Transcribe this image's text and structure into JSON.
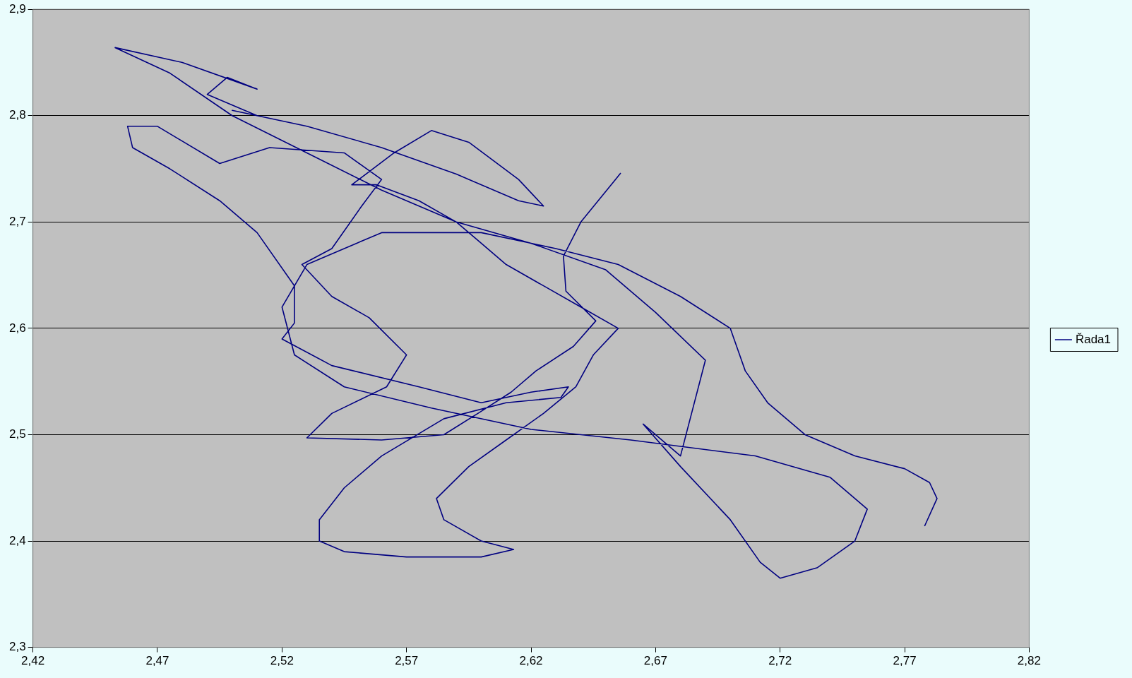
{
  "chart_data": {
    "type": "line",
    "x": [
      2.656,
      2.64,
      2.633,
      2.634,
      2.646,
      2.637,
      2.622,
      2.612,
      2.6,
      2.585,
      2.56,
      2.53,
      2.54,
      2.562,
      2.57,
      2.555,
      2.54,
      2.528,
      2.54,
      2.552,
      2.56,
      2.545,
      2.515,
      2.495,
      2.47,
      2.458,
      2.46,
      2.475,
      2.495,
      2.51,
      2.525,
      2.525,
      2.52,
      2.54,
      2.575,
      2.6,
      2.62,
      2.635,
      2.632,
      2.61,
      2.585,
      2.56,
      2.545,
      2.535,
      2.535,
      2.545,
      2.57,
      2.6,
      2.613,
      2.6,
      2.585,
      2.582,
      2.595,
      2.61,
      2.625,
      2.638,
      2.645,
      2.655,
      2.64,
      2.625,
      2.61,
      2.6,
      2.59,
      2.575,
      2.558,
      2.548,
      2.565,
      2.58,
      2.595,
      2.615,
      2.625,
      2.615,
      2.59,
      2.56,
      2.53,
      2.5,
      2.51,
      2.49,
      2.498,
      2.51,
      2.48,
      2.453,
      2.475,
      2.5,
      2.53,
      2.56,
      2.59,
      2.62,
      2.65,
      2.67,
      2.69,
      2.68,
      2.665,
      2.68,
      2.7,
      2.712,
      2.72,
      2.735,
      2.75,
      2.755,
      2.74,
      2.71,
      2.66,
      2.62,
      2.58,
      2.545,
      2.525,
      2.52,
      2.53,
      2.56,
      2.6,
      2.63,
      2.655,
      2.68,
      2.7,
      2.706,
      2.715,
      2.73,
      2.75,
      2.77,
      2.78,
      2.783,
      2.778
    ],
    "series": [
      {
        "name": "Řada1",
        "color": "#000080",
        "values": [
          2.746,
          2.7,
          2.668,
          2.635,
          2.607,
          2.583,
          2.56,
          2.54,
          2.522,
          2.5,
          2.495,
          2.497,
          2.52,
          2.545,
          2.575,
          2.61,
          2.63,
          2.66,
          2.675,
          2.715,
          2.74,
          2.765,
          2.77,
          2.755,
          2.79,
          2.79,
          2.77,
          2.75,
          2.72,
          2.69,
          2.64,
          2.605,
          2.59,
          2.565,
          2.545,
          2.53,
          2.54,
          2.545,
          2.535,
          2.53,
          2.515,
          2.48,
          2.45,
          2.42,
          2.4,
          2.39,
          2.385,
          2.385,
          2.392,
          2.4,
          2.42,
          2.44,
          2.47,
          2.495,
          2.52,
          2.545,
          2.575,
          2.6,
          2.62,
          2.64,
          2.66,
          2.68,
          2.7,
          2.72,
          2.735,
          2.735,
          2.765,
          2.786,
          2.775,
          2.74,
          2.715,
          2.72,
          2.745,
          2.77,
          2.79,
          2.805,
          2.8,
          2.82,
          2.836,
          2.825,
          2.85,
          2.864,
          2.84,
          2.8,
          2.765,
          2.73,
          2.7,
          2.68,
          2.655,
          2.615,
          2.57,
          2.48,
          2.51,
          2.47,
          2.42,
          2.38,
          2.365,
          2.375,
          2.4,
          2.43,
          2.46,
          2.48,
          2.495,
          2.505,
          2.525,
          2.545,
          2.575,
          2.62,
          2.66,
          2.69,
          2.69,
          2.675,
          2.66,
          2.63,
          2.6,
          2.56,
          2.53,
          2.5,
          2.48,
          2.468,
          2.455,
          2.44,
          2.414
        ]
      }
    ],
    "xlim": [
      2.42,
      2.82
    ],
    "xticks": [
      {
        "value": 2.42,
        "label": "2,42"
      },
      {
        "value": 2.47,
        "label": "2,47"
      },
      {
        "value": 2.52,
        "label": "2,52"
      },
      {
        "value": 2.57,
        "label": "2,57"
      },
      {
        "value": 2.62,
        "label": "2,62"
      },
      {
        "value": 2.67,
        "label": "2,67"
      },
      {
        "value": 2.72,
        "label": "2,72"
      },
      {
        "value": 2.77,
        "label": "2,77"
      },
      {
        "value": 2.82,
        "label": "2,82"
      }
    ],
    "ylim": [
      2.3,
      2.9
    ],
    "yticks": [
      {
        "value": 2.3,
        "label": "2,3"
      },
      {
        "value": 2.4,
        "label": "2,4"
      },
      {
        "value": 2.5,
        "label": "2,5"
      },
      {
        "value": 2.6,
        "label": "2,6"
      },
      {
        "value": 2.7,
        "label": "2,7"
      },
      {
        "value": 2.8,
        "label": "2,8"
      },
      {
        "value": 2.9,
        "label": "2,9"
      }
    ],
    "grid": "y",
    "legend": "right",
    "marker": "none",
    "line_style": "solid"
  }
}
